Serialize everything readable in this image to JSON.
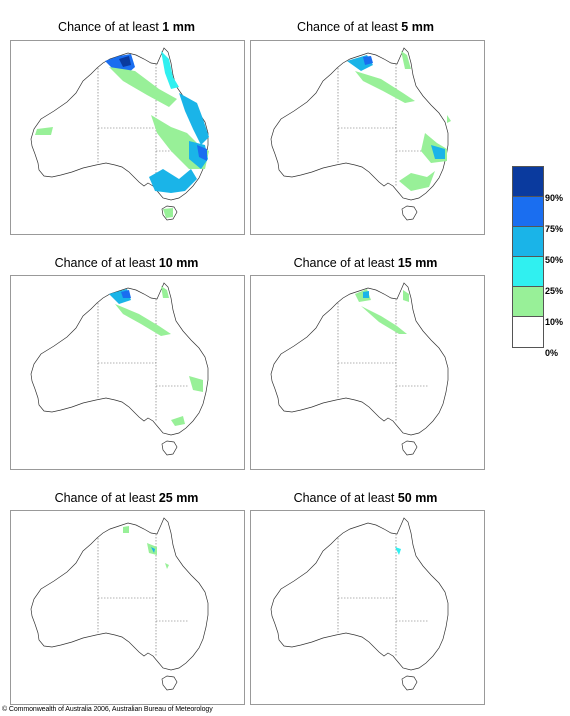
{
  "panels": [
    {
      "prefix": "Chance of at least ",
      "amount": "1 mm"
    },
    {
      "prefix": "Chance of at least ",
      "amount": "5 mm"
    },
    {
      "prefix": "Chance of at least ",
      "amount": "10 mm"
    },
    {
      "prefix": "Chance of at least ",
      "amount": "15 mm"
    },
    {
      "prefix": "Chance of at least ",
      "amount": "25 mm"
    },
    {
      "prefix": "Chance of at least ",
      "amount": "50 mm"
    }
  ],
  "legend": {
    "labels": [
      "90%",
      "75%",
      "50%",
      "25%",
      "10%",
      "0%"
    ],
    "colors": [
      "#0a3a9e",
      "#1a6ef0",
      "#1ab4e8",
      "#30f0f0",
      "#98f098",
      "#ffffff"
    ]
  },
  "copyright": "© Commonwealth of Australia 2006, Australian Bureau of Meteorology"
}
